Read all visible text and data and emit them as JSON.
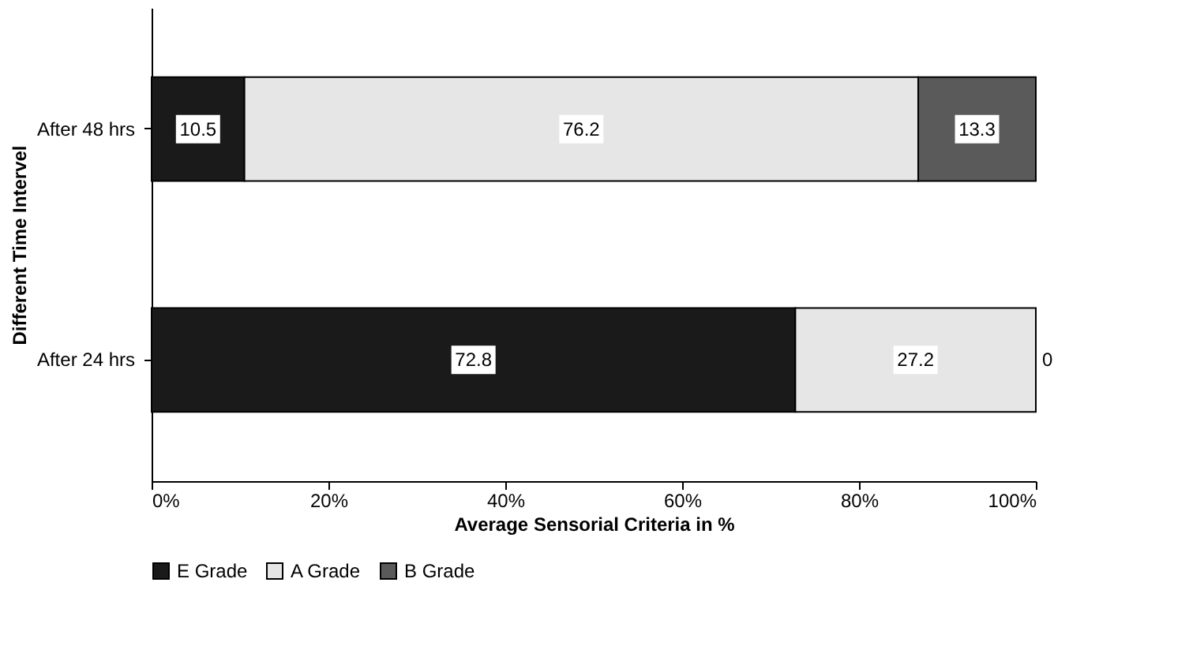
{
  "chart_data": {
    "type": "bar",
    "orientation": "horizontal",
    "stacked": true,
    "categories": [
      "After 48 hrs",
      "After 24 hrs"
    ],
    "xlabel": "Average Sensorial Criteria in %",
    "ylabel": "Different Time Intervel",
    "series": [
      {
        "name": "E Grade",
        "color": "#1a1a1a",
        "values": [
          10.5,
          72.8
        ]
      },
      {
        "name": "A Grade",
        "color": "#e6e6e6",
        "values": [
          76.2,
          27.2
        ]
      },
      {
        "name": "B Grade",
        "color": "#5a5a5a",
        "values": [
          13.3,
          0
        ]
      }
    ],
    "xlim": [
      0,
      100
    ],
    "xticks": [
      {
        "value": 0,
        "label": "0%"
      },
      {
        "value": 20,
        "label": "20%"
      },
      {
        "value": 40,
        "label": "40%"
      },
      {
        "value": 60,
        "label": "60%"
      },
      {
        "value": 80,
        "label": "80%"
      },
      {
        "value": 100,
        "label": "100%"
      }
    ],
    "data_labels": true,
    "grid": false,
    "legend": "bottom"
  }
}
